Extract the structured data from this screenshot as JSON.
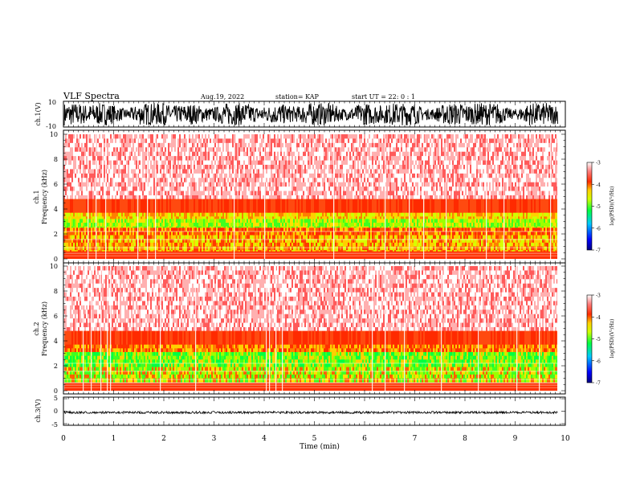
{
  "header": {
    "title": "VLF Spectra",
    "date": "Aug.19, 2022",
    "station": "station= KAP",
    "start": "start  UT =  22: 0  : 1"
  },
  "chart_data": [
    {
      "type": "line",
      "panel": "ch1-waveform",
      "ylabel": "ch.1(V)",
      "ylim": [
        -10,
        10
      ],
      "yticks": [
        "10",
        "-10"
      ],
      "xlim": [
        0,
        10
      ],
      "color": "#000000"
    },
    {
      "type": "heatmap",
      "panel": "ch1-spectrogram",
      "ylabel_lines": [
        "ch.1",
        "Frequency  (kHz)"
      ],
      "ylim": [
        0,
        10
      ],
      "yticks": [
        "0",
        "2",
        "4",
        "6",
        "8",
        "10"
      ],
      "xlim": [
        0,
        9.85
      ],
      "colorbar": {
        "label": "log(PSD)(V²/Hz)",
        "range": [
          -7,
          -3
        ],
        "ticks": [
          "-3",
          "-4",
          "-5",
          "-6",
          "-7"
        ]
      }
    },
    {
      "type": "heatmap",
      "panel": "ch2-spectrogram",
      "ylabel_lines": [
        "ch.2",
        "Frequency  (kHz)"
      ],
      "ylim": [
        0,
        10
      ],
      "yticks": [
        "0",
        "2",
        "4",
        "6",
        "8",
        "10"
      ],
      "xlim": [
        0,
        9.85
      ],
      "colorbar": {
        "label": "log(PSD)(V²/Hz)",
        "range": [
          -7,
          -3
        ],
        "ticks": [
          "-3",
          "-4",
          "-5",
          "-6",
          "-7"
        ]
      }
    },
    {
      "type": "line",
      "panel": "ch3-waveform",
      "ylabel": "ch.3(V)",
      "ylim": [
        -5,
        5
      ],
      "yticks": [
        "5",
        "0",
        "-5"
      ],
      "level": -0.5,
      "xlim": [
        0,
        10
      ],
      "xlabel": "Time  (min)",
      "xticks": [
        "0",
        "1",
        "2",
        "3",
        "4",
        "5",
        "6",
        "7",
        "8",
        "9",
        "10"
      ]
    }
  ]
}
